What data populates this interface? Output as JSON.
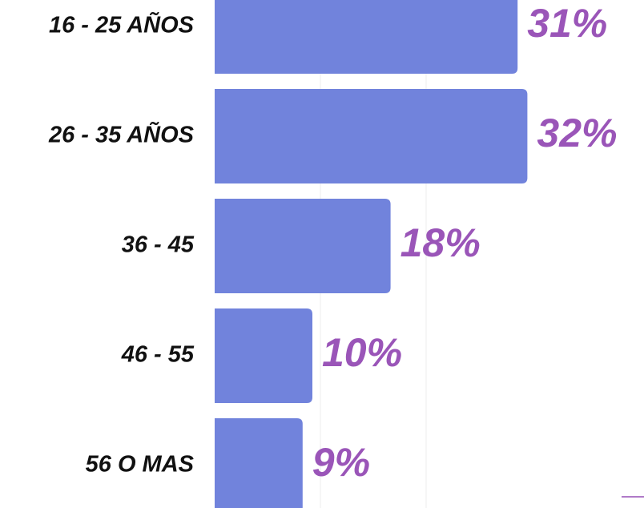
{
  "chart_data": {
    "type": "bar",
    "orientation": "horizontal",
    "categories": [
      "16 - 25 AÑOS",
      "26 - 35 AÑOS",
      "36 - 45",
      "46 - 55",
      "56 O MAS"
    ],
    "values": [
      31,
      32,
      18,
      10,
      9
    ],
    "value_labels": [
      "31%",
      "32%",
      "18%",
      "10%",
      "9%"
    ],
    "color": "#7183dc",
    "xlim": [
      0,
      40
    ]
  }
}
